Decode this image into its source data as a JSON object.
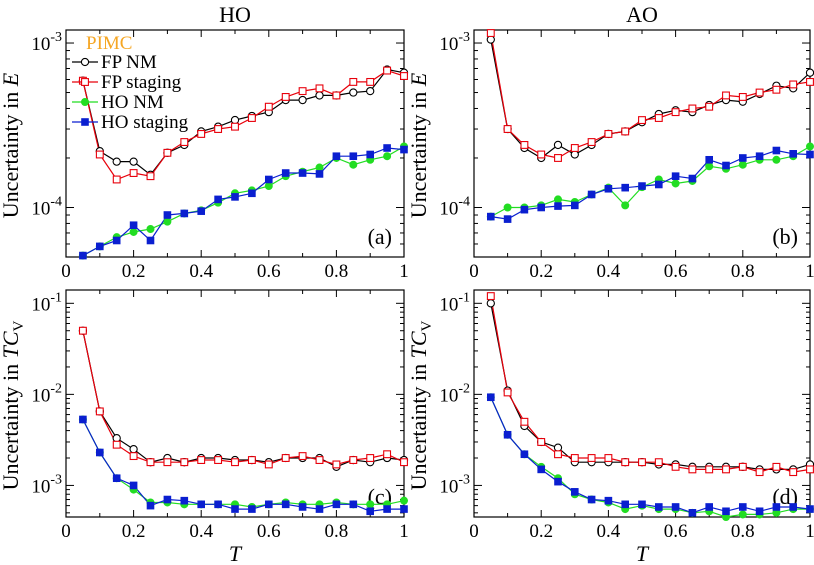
{
  "chart_data": [
    {
      "type": "line",
      "panel": "(a)",
      "title": "HO",
      "xlabel": "T",
      "ylabel_prefix": "Uncertainty in ",
      "ylabel_var": "E",
      "yscale": "log",
      "xlim": [
        0,
        1
      ],
      "ylim": [
        5e-05,
        0.0012
      ],
      "x_ticks": [
        "0",
        "0.2",
        "0.4",
        "0.6",
        "0.8",
        "1"
      ],
      "y_ticks": [
        {
          "base": "10",
          "exp": "-4",
          "value": 0.0001
        },
        {
          "base": "10",
          "exp": "-3",
          "value": 0.001
        }
      ],
      "legend": {
        "title": "PIMC",
        "position": "top-left"
      },
      "x": [
        0.05,
        0.1,
        0.15,
        0.2,
        0.25,
        0.3,
        0.35,
        0.4,
        0.45,
        0.5,
        0.55,
        0.6,
        0.65,
        0.7,
        0.75,
        0.8,
        0.85,
        0.9,
        0.95,
        1.0
      ],
      "series": [
        {
          "name": "FP NM",
          "color": "#000000",
          "marker": "open-circle",
          "values": [
            0.00059,
            0.00022,
            0.00019,
            0.00019,
            0.000158,
            0.000215,
            0.00024,
            0.00029,
            0.00031,
            0.00034,
            0.00036,
            0.00038,
            0.00045,
            0.00045,
            0.00048,
            0.00048,
            0.0005,
            0.00051,
            0.00069,
            0.00066
          ]
        },
        {
          "name": "FP staging",
          "color": "#e8000b",
          "marker": "open-square",
          "values": [
            0.00059,
            0.00021,
            0.000148,
            0.000162,
            0.000155,
            0.000215,
            0.00025,
            0.00028,
            0.0003,
            0.00031,
            0.00035,
            0.00041,
            0.00047,
            0.00051,
            0.00053,
            0.00048,
            0.00058,
            0.00058,
            0.00068,
            0.00063
          ]
        },
        {
          "name": "HO NM",
          "color": "#22dd22",
          "marker": "filled-circle",
          "values": [
            5.1e-05,
            5.8e-05,
            6.6e-05,
            7.1e-05,
            7.4e-05,
            8.2e-05,
            9.2e-05,
            9.6e-05,
            0.000107,
            0.000122,
            0.000127,
            0.000135,
            0.000155,
            0.000165,
            0.000175,
            0.0002,
            0.000182,
            0.000195,
            0.000205,
            0.000235
          ]
        },
        {
          "name": "HO staging",
          "color": "#0a1fd0",
          "marker": "filled-square",
          "values": [
            5.1e-05,
            5.8e-05,
            6.3e-05,
            7.8e-05,
            6.3e-05,
            9e-05,
            9.2e-05,
            9.5e-05,
            0.000112,
            0.000116,
            0.000122,
            0.000148,
            0.000162,
            0.000162,
            0.00016,
            0.000205,
            0.000205,
            0.00021,
            0.00023,
            0.000225
          ]
        }
      ]
    },
    {
      "type": "line",
      "panel": "(b)",
      "title": "AO",
      "xlabel": "T",
      "ylabel_prefix": "Uncertainty in ",
      "ylabel_var": "E",
      "yscale": "log",
      "xlim": [
        0,
        1
      ],
      "ylim": [
        5e-05,
        0.0012
      ],
      "x_ticks": [
        "0",
        "0.2",
        "0.4",
        "0.6",
        "0.8",
        "1"
      ],
      "y_ticks": [
        {
          "base": "10",
          "exp": "-4",
          "value": 0.0001
        },
        {
          "base": "10",
          "exp": "-3",
          "value": 0.001
        }
      ],
      "x": [
        0.05,
        0.1,
        0.15,
        0.2,
        0.25,
        0.3,
        0.35,
        0.4,
        0.45,
        0.5,
        0.55,
        0.6,
        0.65,
        0.7,
        0.75,
        0.8,
        0.85,
        0.9,
        0.95,
        1.0
      ],
      "series": [
        {
          "name": "FP NM",
          "color": "#000000",
          "marker": "open-circle",
          "values": [
            0.00105,
            0.0003,
            0.00023,
            0.0002,
            0.00024,
            0.00021,
            0.00024,
            0.00028,
            0.00029,
            0.00033,
            0.00037,
            0.00039,
            0.00038,
            0.00042,
            0.00045,
            0.00044,
            0.00049,
            0.00055,
            0.00053,
            0.00066
          ]
        },
        {
          "name": "FP staging",
          "color": "#e8000b",
          "marker": "open-square",
          "values": [
            0.00115,
            0.0003,
            0.00024,
            0.00021,
            0.0002,
            0.00023,
            0.00025,
            0.00028,
            0.00029,
            0.00034,
            0.00035,
            0.00038,
            0.0004,
            0.00041,
            0.00048,
            0.00047,
            0.0005,
            0.00052,
            0.00056,
            0.00058
          ]
        },
        {
          "name": "HO NM",
          "color": "#22dd22",
          "marker": "filled-circle",
          "values": [
            8.8e-05,
            0.0001,
            0.0001,
            0.000103,
            0.000112,
            0.000108,
            0.00012,
            0.000132,
            0.000103,
            0.000133,
            0.000148,
            0.00014,
            0.000145,
            0.000178,
            0.000172,
            0.000182,
            0.000195,
            0.000195,
            0.000205,
            0.000235
          ]
        },
        {
          "name": "HO staging",
          "color": "#0a1fd0",
          "marker": "filled-square",
          "values": [
            8.8e-05,
            8.5e-05,
            9.7e-05,
            0.0001,
            0.000102,
            0.000103,
            0.00012,
            0.00013,
            0.000132,
            0.000135,
            0.000138,
            0.000155,
            0.00015,
            0.000195,
            0.00018,
            0.0002,
            0.000205,
            0.000222,
            0.000212,
            0.00021
          ]
        }
      ]
    },
    {
      "type": "line",
      "panel": "(c)",
      "xlabel": "T",
      "ylabel_prefix": "Uncertainty in ",
      "ylabel_var": "TC",
      "ylabel_sub": "V",
      "yscale": "log",
      "xlim": [
        0,
        1
      ],
      "ylim": [
        0.00045,
        0.14
      ],
      "x_ticks": [
        "0",
        "0.2",
        "0.4",
        "0.6",
        "0.8",
        "1"
      ],
      "y_ticks": [
        {
          "base": "10",
          "exp": "-3",
          "value": 0.001
        },
        {
          "base": "10",
          "exp": "-2",
          "value": 0.01
        },
        {
          "base": "10",
          "exp": "-1",
          "value": 0.1
        }
      ],
      "x": [
        0.05,
        0.1,
        0.15,
        0.2,
        0.25,
        0.3,
        0.35,
        0.4,
        0.45,
        0.5,
        0.55,
        0.6,
        0.65,
        0.7,
        0.75,
        0.8,
        0.85,
        0.9,
        0.95,
        1.0
      ],
      "series": [
        {
          "name": "FP NM",
          "color": "#000000",
          "marker": "open-circle",
          "values": [
            0.05,
            0.0065,
            0.0033,
            0.0025,
            0.0018,
            0.002,
            0.0018,
            0.002,
            0.002,
            0.0019,
            0.0019,
            0.0018,
            0.002,
            0.002,
            0.002,
            0.0016,
            0.0019,
            0.0018,
            0.002,
            0.0019
          ]
        },
        {
          "name": "FP staging",
          "color": "#e8000b",
          "marker": "open-square",
          "values": [
            0.05,
            0.0065,
            0.0028,
            0.0021,
            0.0018,
            0.0018,
            0.0018,
            0.0019,
            0.0019,
            0.0018,
            0.0019,
            0.0017,
            0.002,
            0.0021,
            0.0019,
            0.0017,
            0.0019,
            0.002,
            0.0022,
            0.0018
          ]
        },
        {
          "name": "HO NM",
          "color": "#22dd22",
          "marker": "filled-circle",
          "values": [
            0.0053,
            0.0023,
            0.0012,
            0.0009,
            0.00065,
            0.00065,
            0.00062,
            0.00062,
            0.00062,
            0.00062,
            0.00058,
            0.00062,
            0.00065,
            0.00062,
            0.00062,
            0.00065,
            0.00062,
            0.00062,
            0.00062,
            0.00068
          ]
        },
        {
          "name": "HO staging",
          "color": "#0a1fd0",
          "marker": "filled-square",
          "values": [
            0.0053,
            0.0023,
            0.0012,
            0.001,
            0.0006,
            0.0007,
            0.00068,
            0.00062,
            0.00062,
            0.00055,
            0.00055,
            0.00062,
            0.00062,
            0.00058,
            0.00055,
            0.00062,
            0.00062,
            0.00052,
            0.00055,
            0.00055
          ]
        }
      ]
    },
    {
      "type": "line",
      "panel": "(d)",
      "xlabel": "T",
      "ylabel_prefix": "Uncertainty in ",
      "ylabel_var": "TC",
      "ylabel_sub": "V",
      "yscale": "log",
      "xlim": [
        0,
        1
      ],
      "ylim": [
        0.00045,
        0.14
      ],
      "x_ticks": [
        "0",
        "0.2",
        "0.4",
        "0.6",
        "0.8",
        "1"
      ],
      "y_ticks": [
        {
          "base": "10",
          "exp": "-3",
          "value": 0.001
        },
        {
          "base": "10",
          "exp": "-2",
          "value": 0.01
        },
        {
          "base": "10",
          "exp": "-1",
          "value": 0.1
        }
      ],
      "x": [
        0.05,
        0.1,
        0.15,
        0.2,
        0.25,
        0.3,
        0.35,
        0.4,
        0.45,
        0.5,
        0.55,
        0.6,
        0.65,
        0.7,
        0.75,
        0.8,
        0.85,
        0.9,
        0.95,
        1.0
      ],
      "series": [
        {
          "name": "FP NM",
          "color": "#000000",
          "marker": "open-circle",
          "values": [
            0.1,
            0.011,
            0.0045,
            0.003,
            0.0026,
            0.0018,
            0.0018,
            0.0018,
            0.0018,
            0.0018,
            0.0017,
            0.0017,
            0.0016,
            0.0016,
            0.0016,
            0.0016,
            0.0015,
            0.0015,
            0.0015,
            0.0017
          ]
        },
        {
          "name": "FP staging",
          "color": "#e8000b",
          "marker": "open-square",
          "values": [
            0.12,
            0.0105,
            0.005,
            0.003,
            0.0022,
            0.002,
            0.002,
            0.002,
            0.0018,
            0.0018,
            0.0018,
            0.0016,
            0.0015,
            0.0015,
            0.0015,
            0.0016,
            0.0014,
            0.0016,
            0.0014,
            0.0015
          ]
        },
        {
          "name": "HO NM",
          "color": "#22dd22",
          "marker": "filled-circle",
          "values": [
            0.0093,
            0.0036,
            0.0022,
            0.0016,
            0.0012,
            0.0008,
            0.0007,
            0.00065,
            0.00055,
            0.0006,
            0.00055,
            0.00055,
            0.0005,
            0.00052,
            0.00045,
            0.00048,
            0.00048,
            0.0005,
            0.00055,
            0.00055
          ]
        },
        {
          "name": "HO staging",
          "color": "#0a1fd0",
          "marker": "filled-square",
          "values": [
            0.0093,
            0.0036,
            0.0022,
            0.0015,
            0.0011,
            0.00085,
            0.0007,
            0.00068,
            0.00062,
            0.00062,
            0.00058,
            0.00058,
            0.0005,
            0.00058,
            0.00052,
            0.00058,
            0.00052,
            0.00058,
            0.00058,
            0.00055
          ]
        }
      ]
    }
  ]
}
